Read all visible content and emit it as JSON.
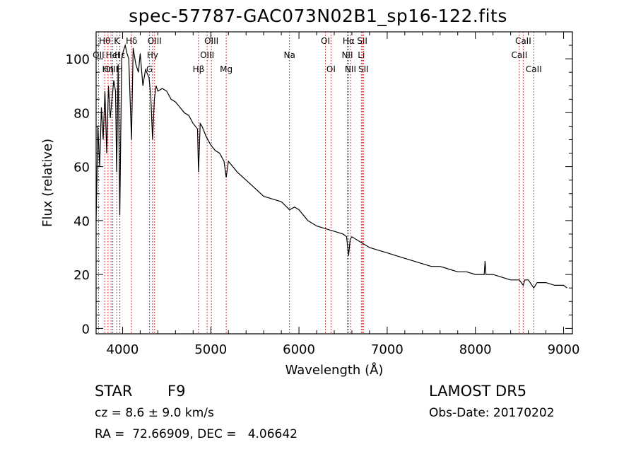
{
  "title": "spec-57787-GAC073N02B1_sp16-122.fits",
  "chart_data": {
    "type": "line",
    "xlabel": "Wavelength (Å)",
    "ylabel": "Flux (relative)",
    "xlim": [
      3700,
      9100
    ],
    "ylim": [
      -2,
      110
    ],
    "xticks": [
      4000,
      5000,
      6000,
      7000,
      8000,
      9000
    ],
    "yticks": [
      0,
      20,
      40,
      60,
      80,
      100
    ],
    "grid": false,
    "series": [
      {
        "x": [
          3700,
          3720,
          3740,
          3760,
          3780,
          3800,
          3820,
          3840,
          3860,
          3880,
          3900,
          3920,
          3933,
          3950,
          3968,
          3990,
          4010,
          4030,
          4050,
          4070,
          4101,
          4120,
          4150,
          4180,
          4200,
          4230,
          4260,
          4300,
          4320,
          4340,
          4360,
          4380,
          4400,
          4450,
          4500,
          4550,
          4600,
          4650,
          4700,
          4750,
          4800,
          4850,
          4861,
          4880,
          4900,
          4950,
          5000,
          5050,
          5100,
          5150,
          5175,
          5200,
          5250,
          5300,
          5400,
          5500,
          5600,
          5700,
          5800,
          5893,
          5950,
          6000,
          6100,
          6200,
          6300,
          6400,
          6500,
          6540,
          6563,
          6580,
          6600,
          6700,
          6800,
          6900,
          7000,
          7100,
          7200,
          7300,
          7400,
          7500,
          7600,
          7700,
          7800,
          7900,
          8000,
          8100,
          8110,
          8120,
          8200,
          8300,
          8400,
          8498,
          8542,
          8560,
          8600,
          8662,
          8700,
          8800,
          8900,
          9000,
          9040
        ],
        "y": [
          40,
          75,
          60,
          82,
          70,
          88,
          65,
          90,
          78,
          85,
          92,
          88,
          58,
          98,
          42,
          100,
          103,
          105,
          102,
          100,
          70,
          104,
          98,
          95,
          102,
          90,
          96,
          93,
          86,
          70,
          85,
          90,
          88,
          89,
          88,
          85,
          84,
          82,
          80,
          79,
          76,
          74,
          58,
          76,
          75,
          71,
          68,
          66,
          65,
          62,
          56,
          62,
          60,
          58,
          55,
          52,
          49,
          48,
          47,
          44,
          45,
          44,
          40,
          38,
          37,
          36,
          35,
          34,
          27,
          33,
          34,
          32,
          30,
          29,
          28,
          27,
          26,
          25,
          24,
          23,
          23,
          22,
          21,
          21,
          20,
          20,
          25,
          20,
          20,
          19,
          18,
          18,
          16,
          18,
          18,
          15,
          17,
          17,
          16,
          16,
          15
        ]
      }
    ],
    "lines": [
      {
        "label": "Hθ",
        "x": 3798,
        "row": 0
      },
      {
        "label": "OII",
        "x": 3727,
        "row": 1
      },
      {
        "label": "OIII",
        "x": 3869,
        "row": 2
      },
      {
        "label": "Hη",
        "x": 3835,
        "row": 2
      },
      {
        "label": "HeI",
        "x": 3889,
        "row": 1
      },
      {
        "label": "K",
        "x": 3934,
        "row": 0
      },
      {
        "label": "H",
        "x": 3968,
        "row": 2
      },
      {
        "label": "Hε",
        "x": 3970,
        "row": 1
      },
      {
        "label": "Hδ",
        "x": 4102,
        "row": 0
      },
      {
        "label": "OIII",
        "x": 4363,
        "row": 0
      },
      {
        "label": "Hγ",
        "x": 4340,
        "row": 1
      },
      {
        "label": "G",
        "x": 4305,
        "row": 2
      },
      {
        "label": "Hβ",
        "x": 4861,
        "row": 2
      },
      {
        "label": "OIII",
        "x": 5007,
        "row": 0
      },
      {
        "label": "OIII",
        "x": 4959,
        "row": 1
      },
      {
        "label": "Mg",
        "x": 5175,
        "row": 2
      },
      {
        "label": "Na",
        "x": 5893,
        "row": 1
      },
      {
        "label": "OI",
        "x": 6300,
        "row": 0
      },
      {
        "label": "OI",
        "x": 6363,
        "row": 2
      },
      {
        "label": "Hα",
        "x": 6563,
        "row": 0
      },
      {
        "label": "NII",
        "x": 6548,
        "row": 1
      },
      {
        "label": "NII",
        "x": 6584,
        "row": 2
      },
      {
        "label": "SII",
        "x": 6717,
        "row": 0
      },
      {
        "label": "Li",
        "x": 6707,
        "row": 1
      },
      {
        "label": "SII",
        "x": 6731,
        "row": 2
      },
      {
        "label": "CaII",
        "x": 8542,
        "row": 0
      },
      {
        "label": "CaII",
        "x": 8498,
        "row": 1
      },
      {
        "label": "CaII",
        "x": 8662,
        "row": 2
      }
    ],
    "line_color": "#cc0000"
  },
  "info": {
    "class": "STAR",
    "subclass": "F9",
    "survey": "LAMOST DR5",
    "cz": "cz = 8.6 ± 9.0 km/s",
    "obs_date": "Obs-Date: 20170202",
    "radec": "RA =  72.66909, DEC =   4.06642"
  }
}
